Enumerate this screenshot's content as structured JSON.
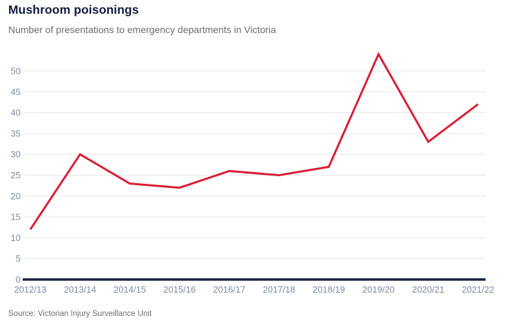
{
  "header": {
    "title": "Mushroom poisonings",
    "subtitle": "Number of presentations to emergency departments in Victoria"
  },
  "footer": {
    "source": "Source: Victorian Injury Surveillance Unit"
  },
  "colors": {
    "line": "#d81e34",
    "axis_baseline": "#132040",
    "gridline": "#e6e6e6",
    "tick_label": "#7b89a0",
    "title": "#121d3e",
    "subtitle": "#6b6b6b",
    "source": "#707070"
  },
  "chart_data": {
    "type": "line",
    "title": "Mushroom poisonings",
    "subtitle": "Number of presentations to emergency departments in Victoria",
    "source": "Source: Victorian Injury Surveillance Unit",
    "categories": [
      "2012/13",
      "2013/14",
      "2014/15",
      "2015/16",
      "2016/17",
      "2017/18",
      "2018/19",
      "2019/20",
      "2020/21",
      "2021/22"
    ],
    "values": [
      12,
      30,
      23,
      22,
      26,
      25,
      27,
      54,
      33,
      42
    ],
    "xlabel": "",
    "ylabel": "",
    "ylim": [
      0,
      55
    ],
    "yticks": [
      0,
      5,
      10,
      15,
      20,
      25,
      30,
      35,
      40,
      45,
      50
    ],
    "grid": true,
    "legend": false
  }
}
